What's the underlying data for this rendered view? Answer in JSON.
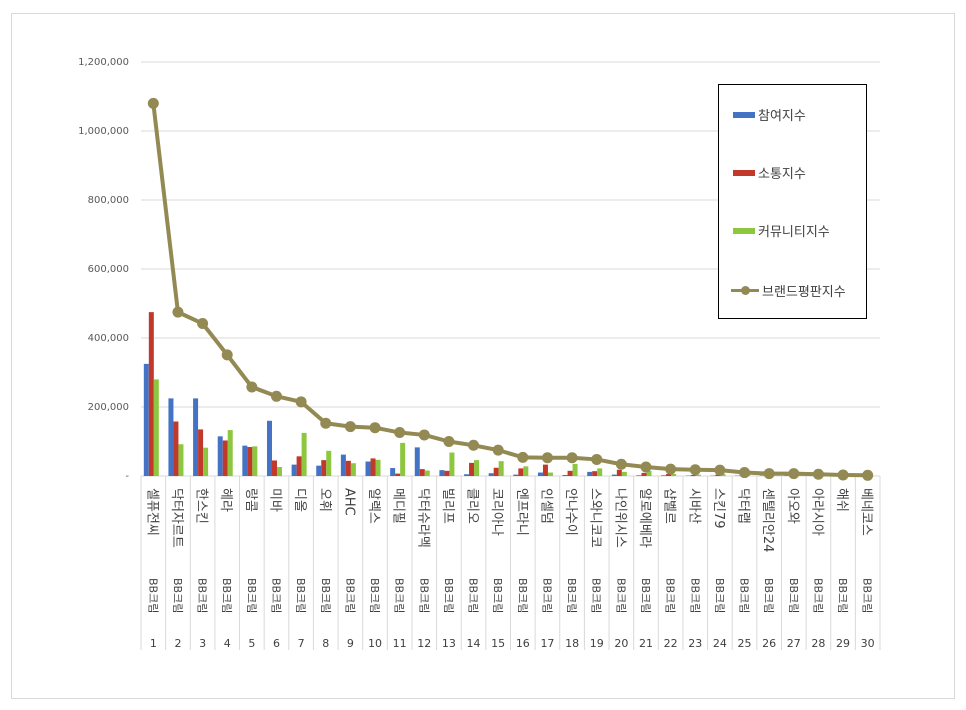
{
  "chart_data": {
    "type": "bar",
    "ylim": [
      0,
      1200000
    ],
    "y_ticks": [
      "-",
      "200,000",
      "400,000",
      "600,000",
      "800,000",
      "1,000,000",
      "1,200,000"
    ],
    "grid": true,
    "legend_position": "top-right",
    "categories": [
      {
        "rank": "1",
        "brand": "셀퓨전씨",
        "group": "BB크림"
      },
      {
        "rank": "2",
        "brand": "닥터자르트",
        "group": "BB크림"
      },
      {
        "rank": "3",
        "brand": "한스킨",
        "group": "BB크림"
      },
      {
        "rank": "4",
        "brand": "헤라",
        "group": "BB크림"
      },
      {
        "rank": "5",
        "brand": "랑콤",
        "group": "BB크림"
      },
      {
        "rank": "6",
        "brand": "미바",
        "group": "BB크림"
      },
      {
        "rank": "7",
        "brand": "디올",
        "group": "BB크림"
      },
      {
        "rank": "8",
        "brand": "오휘",
        "group": "BB크림"
      },
      {
        "rank": "9",
        "brand": "AHC",
        "group": "BB크림"
      },
      {
        "rank": "10",
        "brand": "알렉스",
        "group": "BB크림"
      },
      {
        "rank": "11",
        "brand": "메디필",
        "group": "BB크림"
      },
      {
        "rank": "12",
        "brand": "닥터슈라멕",
        "group": "BB크림"
      },
      {
        "rank": "13",
        "brand": "빌리프",
        "group": "BB크림"
      },
      {
        "rank": "14",
        "brand": "클리오",
        "group": "BB크림"
      },
      {
        "rank": "15",
        "brand": "코리아나",
        "group": "BB크림"
      },
      {
        "rank": "16",
        "brand": "엔프라니",
        "group": "BB크림"
      },
      {
        "rank": "17",
        "brand": "인셀덤",
        "group": "BB크림"
      },
      {
        "rank": "18",
        "brand": "안나수이",
        "group": "BB크림"
      },
      {
        "rank": "19",
        "brand": "스와니코코",
        "group": "BB크림"
      },
      {
        "rank": "20",
        "brand": "나인위시스",
        "group": "BB크림"
      },
      {
        "rank": "21",
        "brand": "알로에베라",
        "group": "BB크림"
      },
      {
        "rank": "22",
        "brand": "샵벨르",
        "group": "BB크림"
      },
      {
        "rank": "23",
        "brand": "시바산",
        "group": "BB크림"
      },
      {
        "rank": "24",
        "brand": "스킨79",
        "group": "BB크림"
      },
      {
        "rank": "25",
        "brand": "닥터랩",
        "group": "BB크림"
      },
      {
        "rank": "26",
        "brand": "센텔리안24",
        "group": "BB크림"
      },
      {
        "rank": "27",
        "brand": "아오와",
        "group": "BB크림"
      },
      {
        "rank": "28",
        "brand": "아라시아",
        "group": "BB크림"
      },
      {
        "rank": "29",
        "brand": "해쉬",
        "group": "BB크림"
      },
      {
        "rank": "30",
        "brand": "베네코스",
        "group": "BB크림"
      }
    ],
    "series": [
      {
        "name": "참여지수",
        "kind": "bar",
        "color": "#4472c4",
        "values": [
          325000,
          225000,
          225000,
          115000,
          88000,
          160000,
          33000,
          30000,
          62000,
          42000,
          23000,
          83000,
          17000,
          5000,
          8000,
          4000,
          10000,
          3000,
          12000,
          4000,
          2000,
          2000,
          1000,
          1000,
          1000,
          1000,
          1000,
          1000,
          1000,
          1000
        ]
      },
      {
        "name": "소통지수",
        "kind": "bar",
        "color": "#c0392b",
        "values": [
          475000,
          158000,
          135000,
          103000,
          84000,
          45000,
          57000,
          46000,
          44000,
          51000,
          7000,
          20000,
          15000,
          38000,
          24000,
          22000,
          33000,
          15000,
          14000,
          18000,
          9000,
          6000,
          3000,
          4000,
          2000,
          3000,
          2000,
          2000,
          1000,
          1000
        ]
      },
      {
        "name": "커뮤니티지수",
        "kind": "bar",
        "color": "#8dc63f",
        "values": [
          280000,
          92000,
          82000,
          133000,
          86000,
          26000,
          125000,
          73000,
          37000,
          47000,
          96000,
          16000,
          68000,
          46000,
          43000,
          28000,
          10000,
          35000,
          22000,
          12000,
          15000,
          6000,
          4000,
          6000,
          5000,
          3000,
          3000,
          2000,
          1000,
          1000
        ]
      },
      {
        "name": "브랜드평판지수",
        "kind": "line",
        "color": "#938953",
        "values": [
          1080000,
          475000,
          442000,
          351000,
          258000,
          231000,
          215000,
          153000,
          143000,
          140000,
          126000,
          119000,
          100000,
          89000,
          75000,
          54000,
          53000,
          53000,
          48000,
          34000,
          26000,
          20000,
          18000,
          17000,
          10000,
          7000,
          7000,
          5000,
          3000,
          2000
        ]
      }
    ]
  },
  "legend": [
    {
      "label": "참여지수",
      "type": "bar",
      "color": "#4472c4"
    },
    {
      "label": "소통지수",
      "type": "bar",
      "color": "#c0392b"
    },
    {
      "label": "커뮤니티지수",
      "type": "bar",
      "color": "#8dc63f"
    },
    {
      "label": "브랜드평판지수",
      "type": "line",
      "color": "#938953"
    }
  ]
}
